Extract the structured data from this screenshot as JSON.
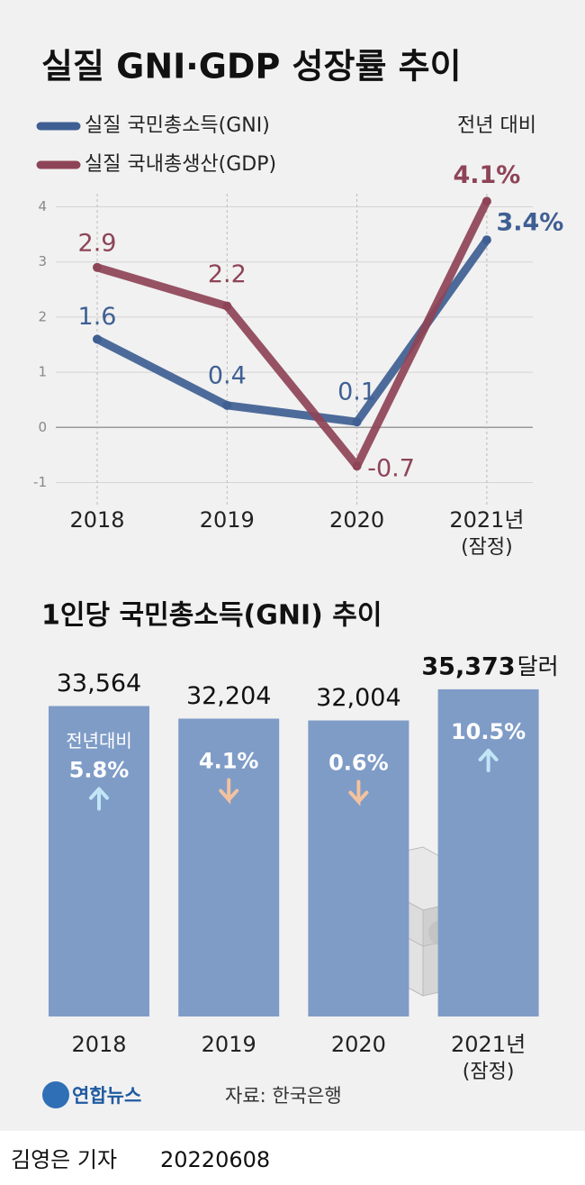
{
  "chart_data": [
    {
      "type": "line",
      "title": "실질 GNI·GDP 성장률 추이",
      "annotation": "전년 대비",
      "categories": [
        "2018",
        "2019",
        "2020",
        "2021년"
      ],
      "category_note": "(잠정)",
      "series": [
        {
          "name": "실질 국민총소득(GNI)",
          "color": "#3f5f93",
          "values": [
            1.6,
            0.4,
            0.1,
            3.4
          ],
          "value_labels": [
            "1.6",
            "0.4",
            "0.1",
            "3.4%"
          ]
        },
        {
          "name": "실질 국내총생산(GDP)",
          "color": "#8e4457",
          "values": [
            2.9,
            2.2,
            -0.7,
            4.1
          ],
          "value_labels": [
            "2.9",
            "2.2",
            "-0.7",
            "4.1%"
          ]
        }
      ],
      "ylim": [
        -1.4,
        4.4
      ],
      "yticks": [
        -1,
        0,
        1,
        2,
        3,
        4
      ],
      "grid": true
    },
    {
      "type": "bar",
      "title": "1인당 국민총소득(GNI) 추이",
      "categories": [
        "2018",
        "2019",
        "2020",
        "2021년"
      ],
      "category_note": "(잠정)",
      "values": [
        33564,
        32204,
        32004,
        35373
      ],
      "value_labels": [
        "33,564",
        "32,204",
        "32,004",
        "35,373"
      ],
      "unit": "달러",
      "color": "#7f9cc7",
      "ylim": [
        0,
        36000
      ],
      "growth_title": "전년대비",
      "growth": [
        {
          "value": 5.8,
          "label": "5.8%",
          "direction": "up"
        },
        {
          "value": 4.1,
          "label": "4.1%",
          "direction": "down"
        },
        {
          "value": 0.6,
          "label": "0.6%",
          "direction": "down"
        },
        {
          "value": 10.5,
          "label": "10.5%",
          "direction": "up"
        }
      ]
    }
  ],
  "logo": "연합뉴스",
  "source": "자료: 한국은행",
  "byline": "김영은 기자",
  "date": "20220608"
}
